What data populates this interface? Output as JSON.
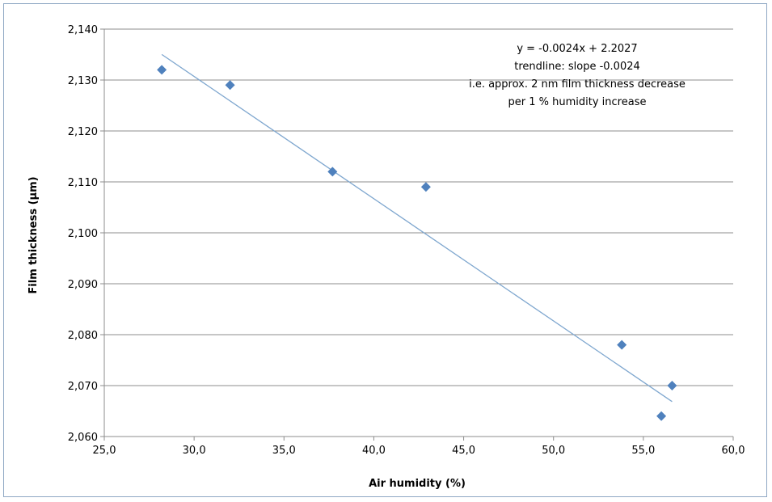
{
  "chart_data": {
    "type": "scatter",
    "title": "",
    "xlabel": "Air humidity (%)",
    "ylabel": "Film thickness (µm)",
    "xlim": [
      25.0,
      60.0
    ],
    "ylim": [
      2.06,
      2.14
    ],
    "x_ticks": [
      "25,0",
      "30,0",
      "35,0",
      "40,0",
      "45,0",
      "50,0",
      "55,0",
      "60,0"
    ],
    "y_ticks": [
      "2,060",
      "2,070",
      "2,080",
      "2,090",
      "2,100",
      "2,110",
      "2,120",
      "2,130",
      "2,140"
    ],
    "grid": "horizontal",
    "marker_color": "#4f81bd",
    "trendline_color": "#7fa7cf",
    "series": [
      {
        "x": [
          28.2,
          32.0,
          37.7,
          42.9,
          53.8,
          56.0,
          56.6
        ],
        "y": [
          2.132,
          2.129,
          2.112,
          2.109,
          2.078,
          2.064,
          2.07
        ]
      }
    ],
    "trendline": {
      "slope": -0.0024,
      "intercept": 2.2027,
      "x_range": [
        28.2,
        56.6
      ]
    },
    "annotation": [
      "y = -0.0024x + 2.2027",
      "trendline: slope -0.0024",
      "i.e. approx. 2 nm film thickness decrease",
      "per 1 % humidity increase"
    ]
  }
}
